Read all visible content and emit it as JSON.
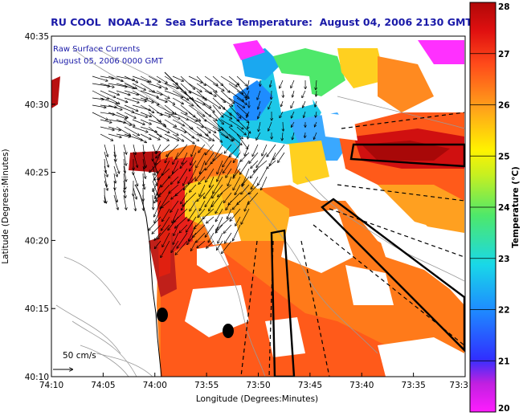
{
  "title": "RU COOL  NOAA-12  Sea Surface Temperature:  August 04, 2006 2130 GMT",
  "legend": {
    "line1": "Raw Surface Currents",
    "line2": "August 05, 2006 0000 GMT"
  },
  "scale": {
    "label": "50 cm/s"
  },
  "axes": {
    "xlabel": "Longitude (Degrees:Minutes)",
    "ylabel": "Latitude (Degrees:Minutes)",
    "xticks": [
      "74:10",
      "74:05",
      "74:00",
      "73:55",
      "73:50",
      "73:45",
      "73:40",
      "73:35",
      "73:3"
    ],
    "yticks": [
      "40:35",
      "40:30",
      "40:25",
      "40:20",
      "40:15",
      "40:10"
    ]
  },
  "colorbar": {
    "label": "Temperature (°C)",
    "ticks": [
      "28",
      "27",
      "26",
      "25",
      "24",
      "23",
      "22",
      "21",
      "20"
    ],
    "range": [
      20,
      28
    ]
  },
  "colors": {
    "title": "#1a1aa8",
    "land": "#ffffff",
    "contour": "#9a9a9a"
  }
}
